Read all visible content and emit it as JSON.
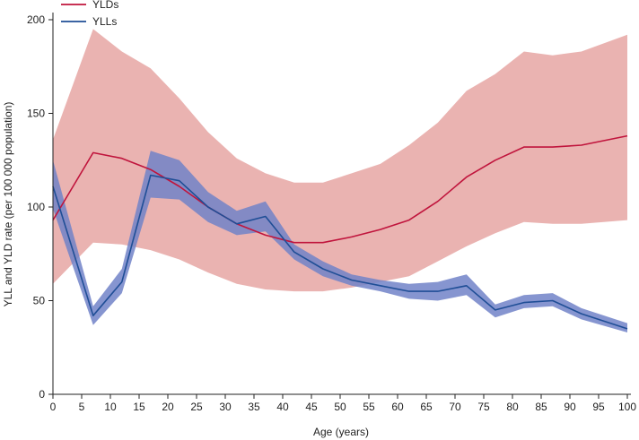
{
  "chart_data": {
    "type": "line",
    "title": "",
    "xlabel": "Age (years)",
    "ylabel": "YLL and YLD rate (per 100 000 population)",
    "xlim": [
      0,
      100
    ],
    "ylim": [
      0,
      200
    ],
    "x_ticks": [
      0,
      5,
      10,
      15,
      20,
      25,
      30,
      35,
      40,
      45,
      50,
      55,
      60,
      65,
      70,
      75,
      80,
      85,
      90,
      95,
      100
    ],
    "y_ticks": [
      0,
      50,
      100,
      150,
      200
    ],
    "legend_position": "top-left",
    "series": [
      {
        "name": "YLDs",
        "color": "#c0143c",
        "band_color": "#e6a6a3",
        "x": [
          0,
          7,
          12,
          17,
          22,
          27,
          32,
          37,
          42,
          47,
          52,
          57,
          62,
          67,
          72,
          77,
          82,
          87,
          92,
          100
        ],
        "values": [
          93,
          129,
          126,
          120,
          111,
          100,
          91,
          85,
          81,
          81,
          84,
          88,
          93,
          103,
          116,
          125,
          132,
          132,
          133,
          138
        ],
        "lower": [
          59,
          81,
          80,
          77,
          72,
          65,
          59,
          56,
          55,
          55,
          57,
          60,
          63,
          71,
          79,
          86,
          92,
          91,
          91,
          93
        ],
        "upper": [
          136,
          195,
          183,
          174,
          158,
          140,
          126,
          118,
          113,
          113,
          118,
          123,
          133,
          145,
          162,
          171,
          183,
          181,
          183,
          192
        ]
      },
      {
        "name": "YLLs",
        "color": "#1f4e96",
        "band_color": "#7183c8",
        "x": [
          0,
          7,
          12,
          17,
          22,
          27,
          32,
          37,
          42,
          47,
          52,
          57,
          62,
          67,
          72,
          77,
          82,
          87,
          92,
          100
        ],
        "values": [
          111,
          42,
          60,
          117,
          114,
          100,
          91,
          95,
          76,
          67,
          61,
          58,
          55,
          55,
          58,
          45,
          49,
          50,
          43,
          35
        ],
        "lower": [
          99,
          37,
          54,
          105,
          104,
          92,
          85,
          87,
          72,
          63,
          58,
          55,
          51,
          50,
          53,
          41,
          46,
          47,
          40,
          33
        ],
        "upper": [
          125,
          47,
          67,
          130,
          125,
          108,
          98,
          103,
          80,
          71,
          64,
          61,
          59,
          60,
          64,
          48,
          53,
          54,
          46,
          38
        ]
      }
    ]
  }
}
